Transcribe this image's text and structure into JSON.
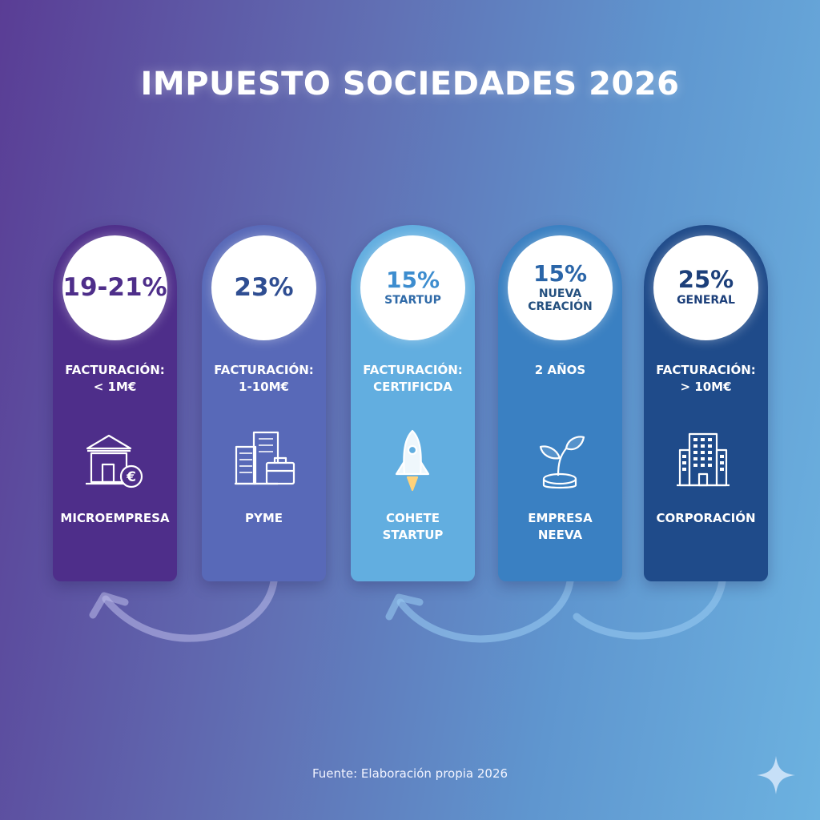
{
  "title": "IMPUESTO SOCIEDADES 2026",
  "source": "Fuente: Elaboración propia 2026",
  "cards": [
    {
      "rate": "19-21%",
      "sub": "",
      "info_1": "FACTURACIÓN:",
      "info_2": "< 1M€",
      "label_1": "MICROEMPRESA",
      "label_2": "",
      "icon": "bank-euro-icon",
      "color": "#4e2e8a",
      "rate_color": "#4e2e8a"
    },
    {
      "rate": "23%",
      "sub": "",
      "info_1": "FACTURACIÓN:",
      "info_2": "1-10M€",
      "label_1": "PYME",
      "label_2": "",
      "icon": "office-briefcase-icon",
      "color": "#5869b8",
      "rate_color": "#2f4e92"
    },
    {
      "rate": "15%",
      "sub": "STARTUP",
      "info_1": "FACTURACIÓN:",
      "info_2": "CERTIFICDA",
      "label_1": "COHETE",
      "label_2": "STARTUP",
      "icon": "rocket-icon",
      "color": "#62aee0",
      "rate_color": "#3d8dcf"
    },
    {
      "rate": "15%",
      "sub": "NUEVA CREACIÓN",
      "info_1": "2 AÑOS",
      "info_2": "",
      "label_1": "EMPRESA",
      "label_2": "NEEVA",
      "icon": "sprout-coin-icon",
      "color": "#3a80c2",
      "rate_color": "#2a65a8"
    },
    {
      "rate": "25%",
      "sub": "GENERAL",
      "info_1": "FACTURACIÓN:",
      "info_2": "> 10M€",
      "label_1": "CORPORACIÓN",
      "label_2": "",
      "icon": "skyscraper-icon",
      "color": "#1f4b8a",
      "rate_color": "#1c3f7a"
    }
  ]
}
